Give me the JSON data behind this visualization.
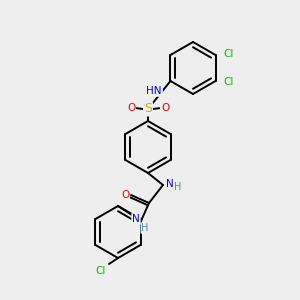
{
  "bg_color": "#eeeeee",
  "atom_colors": {
    "C": "#000000",
    "H": "#4a9090",
    "N": "#0000ee",
    "O": "#ee0000",
    "S": "#ccaa00",
    "Cl": "#00bb00"
  },
  "bond_color": "#000000",
  "line_width": 1.4,
  "figsize": [
    3.0,
    3.0
  ],
  "dpi": 100,
  "ring_r": 26
}
